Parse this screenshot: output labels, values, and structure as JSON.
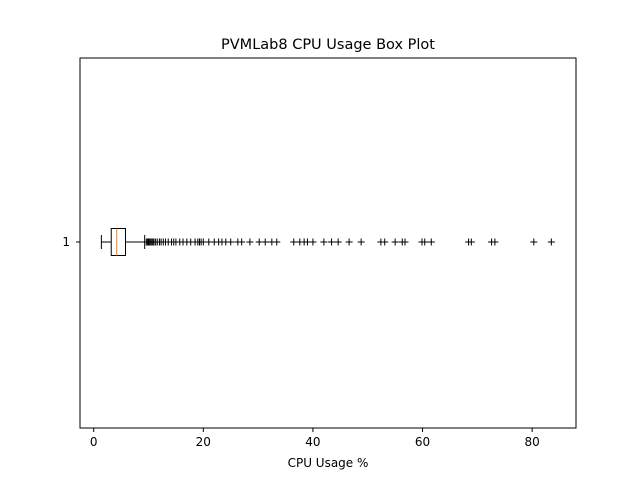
{
  "chart_data": {
    "type": "boxplot",
    "orientation": "horizontal",
    "title": "PVMLab8 CPU Usage Box Plot",
    "xlabel": "CPU Usage %",
    "ylabel": "",
    "xlim": [
      -2.5,
      88.0
    ],
    "xticks": [
      0,
      20,
      40,
      60,
      80
    ],
    "xtick_labels": [
      "0",
      "20",
      "40",
      "60",
      "80"
    ],
    "category_labels": [
      "1"
    ],
    "grid": false,
    "series": [
      {
        "category": "1",
        "whisker_low": 1.4,
        "q1": 3.2,
        "median": 4.2,
        "q3": 5.8,
        "whisker_high": 9.3,
        "outliers": [
          9.6,
          9.8,
          10.0,
          10.2,
          10.4,
          10.6,
          10.8,
          11.0,
          11.3,
          11.6,
          12.0,
          12.3,
          12.7,
          13.1,
          13.6,
          14.2,
          14.6,
          15.0,
          15.7,
          16.3,
          17.0,
          17.7,
          18.5,
          19.0,
          19.3,
          19.6,
          20.0,
          21.0,
          22.0,
          22.8,
          23.4,
          24.1,
          25.0,
          26.3,
          27.0,
          28.5,
          30.2,
          31.3,
          32.5,
          33.4,
          36.5,
          37.6,
          38.4,
          39.0,
          40.0,
          42.0,
          43.4,
          44.6,
          46.6,
          48.8,
          52.4,
          53.1,
          55.0,
          56.3,
          56.8,
          59.9,
          60.4,
          61.6,
          68.4,
          68.9,
          72.6,
          73.2,
          80.3,
          83.5
        ]
      }
    ],
    "colors": {
      "box": "#000000",
      "median": "#ff7f0e",
      "whisker": "#000000",
      "outlier": "#000000"
    }
  }
}
